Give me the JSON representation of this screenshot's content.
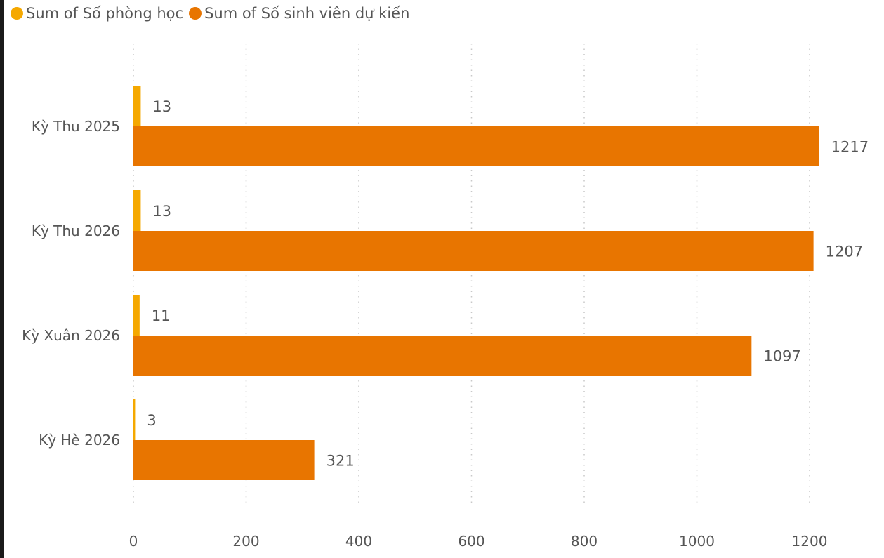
{
  "legend": {
    "items": [
      {
        "label": "Sum of Số phòng học",
        "color": "#F5A800"
      },
      {
        "label": "Sum of Số sinh viên dự kiến",
        "color": "#E87500"
      }
    ]
  },
  "chart_data": {
    "type": "bar",
    "orientation": "horizontal",
    "categories": [
      "Kỳ Thu 2025",
      "Kỳ Thu 2026",
      "Kỳ Xuân 2026",
      "Kỳ Hè 2026"
    ],
    "series": [
      {
        "name": "Sum of Số phòng học",
        "color": "#F5A800",
        "values": [
          13,
          13,
          11,
          3
        ]
      },
      {
        "name": "Sum of Số sinh viên dự kiến",
        "color": "#E87500",
        "values": [
          1217,
          1207,
          1097,
          321
        ]
      }
    ],
    "xticks": [
      0,
      200,
      400,
      600,
      800,
      1000,
      1200
    ],
    "xlim": [
      0,
      1200
    ],
    "grid": true,
    "legend_position": "top-left",
    "data_labels": true
  }
}
